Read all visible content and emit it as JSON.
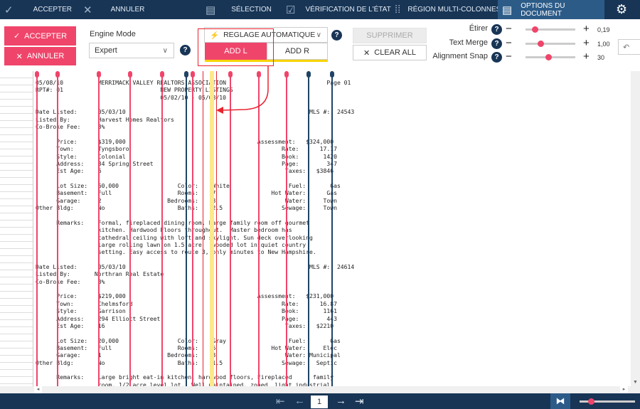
{
  "topbar": {
    "accept": "ACCEPTER",
    "cancel": "ANNULER",
    "selection": "SÉLECTION",
    "verification": "VÉRIFICATION DE L'ÉTAT",
    "multi_column": "RÉGION MULTI-COLONNES",
    "doc_options": "OPTIONS DU DOCUMENT"
  },
  "toolbar": {
    "accept": "ACCEPTER",
    "cancel": "ANNULER",
    "engine_mode_label": "Engine Mode",
    "engine_mode_value": "Expert",
    "auto_adjust": "REGLAGE AUTOMATIQUE",
    "add_l": "ADD L",
    "add_r": "ADD R",
    "delete": "SUPPRIMER",
    "clear_all": "CLEAR ALL",
    "stretch_label": "Étirer",
    "stretch_value": "0,19",
    "stretch_level": 0.19,
    "text_merge_label": "Text Merge",
    "text_merge_value": "1,00",
    "text_merge_level": 0.3,
    "alignment_snap_label": "Alignment Snap",
    "alignment_snap_value": "30",
    "alignment_snap_level": 0.45,
    "help": "?"
  },
  "colors": {
    "accent": "#f0456b",
    "navy": "#183556",
    "active_tab": "#2c5b88",
    "highlight": "#fde98a"
  },
  "document": {
    "lines": [
      "05/08/10          MERRIMACK VALLEY REALTORS ASSOCIATION                             Page 01",
      "RPT#: 01                            NEW PROPERTY LISTINGS",
      "                                    05/02/10 - 05/08/10",
      "",
      "Date Listed:      05/03/10                                                     MLS #:  24543",
      "Listed By:        Harvest Homes Realtors",
      "Co-Broke Fee:     3%",
      "",
      "      Price:      $319,000                                      Assessment:   $324,000",
      "      Town:       Tyngsboro                                            Rate:      17.17",
      "      Style:      Colonial                                             Book:       1420",
      "      Address:    34 Spring Street                                     Page:        347",
      "      Est Age:    6                                                     Taxes:   $3846",
      "",
      "      Lot Size:   60,000                 Color:    White                 Fuel:       Gas",
      "      Basement:   Full                   Rooms:    7                Hot Water:      Gas",
      "      Garage:     2                   Bedrooms:    3                    Water:     Town",
      "Other Bldg:       No                     Baths:    2.5                 Sewage:     Town",
      "",
      "      Remarks:    Formal, fireplaced dining room. Large family room off gourmet",
      "                  kitchen. Hardwood Floors throughout.  Master bedroom has",
      "                  cathedral ceiling with loft and skylight. Sun deck overlooking",
      "                  large rolling lawn on 1.5 acre   wooded lot in quiet country",
      "                  setting. Easy access to route 3, only minutes to New Hampshire.",
      "",
      "Date Listed:      05/03/10                                                     MLS #:  24614",
      "Listed By:       Northran Real Estate",
      "Co-Broke Fee:     3%",
      "",
      "      Price:      $219,000                                      Assessment:   $231,000",
      "      Town:       Chelmsford                                           Rate:      16.87",
      "      Style:      Garrison                                             Book:       1161",
      "      Address:    294 Elliott Street                                   Page:        443",
      "      Est Age:    16                                                    Taxes:   $2210",
      "",
      "      Lot Size:   20,000                 Color:    Gray                  Fuel:       Gas",
      "      Basement:   Full                   Rooms:    6                Hot Water:     Elec",
      "      Garage:     1                   Bedrooms:    3                    Water: Municipal",
      "Other Bldg:       No                     Baths:    1.5                 Sewage:   Septic",
      "",
      "      Remarks:    Large bright eat-in kitchen, hardwood floors, Fireplaced      family",
      "                  room. 1/2 acre level lot.  Well maintained, zoned  light industrial"
    ]
  },
  "pager": {
    "page": "1"
  }
}
